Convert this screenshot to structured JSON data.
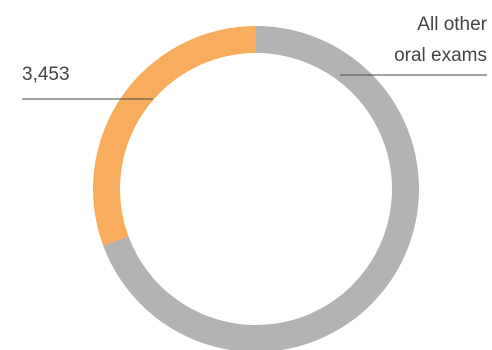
{
  "chart_data": {
    "type": "pie",
    "variant": "donut",
    "start_angle_deg": 0,
    "slices": [
      {
        "label": "",
        "value": 3453,
        "value_label": "3,453",
        "color": "#F7AD5D"
      },
      {
        "label": "All other oral exams",
        "label_lines": [
          "All other",
          "oral exams"
        ],
        "value": 7800,
        "value_label": "",
        "color": "#B3B3B3"
      }
    ],
    "title": "",
    "legend": "none"
  }
}
